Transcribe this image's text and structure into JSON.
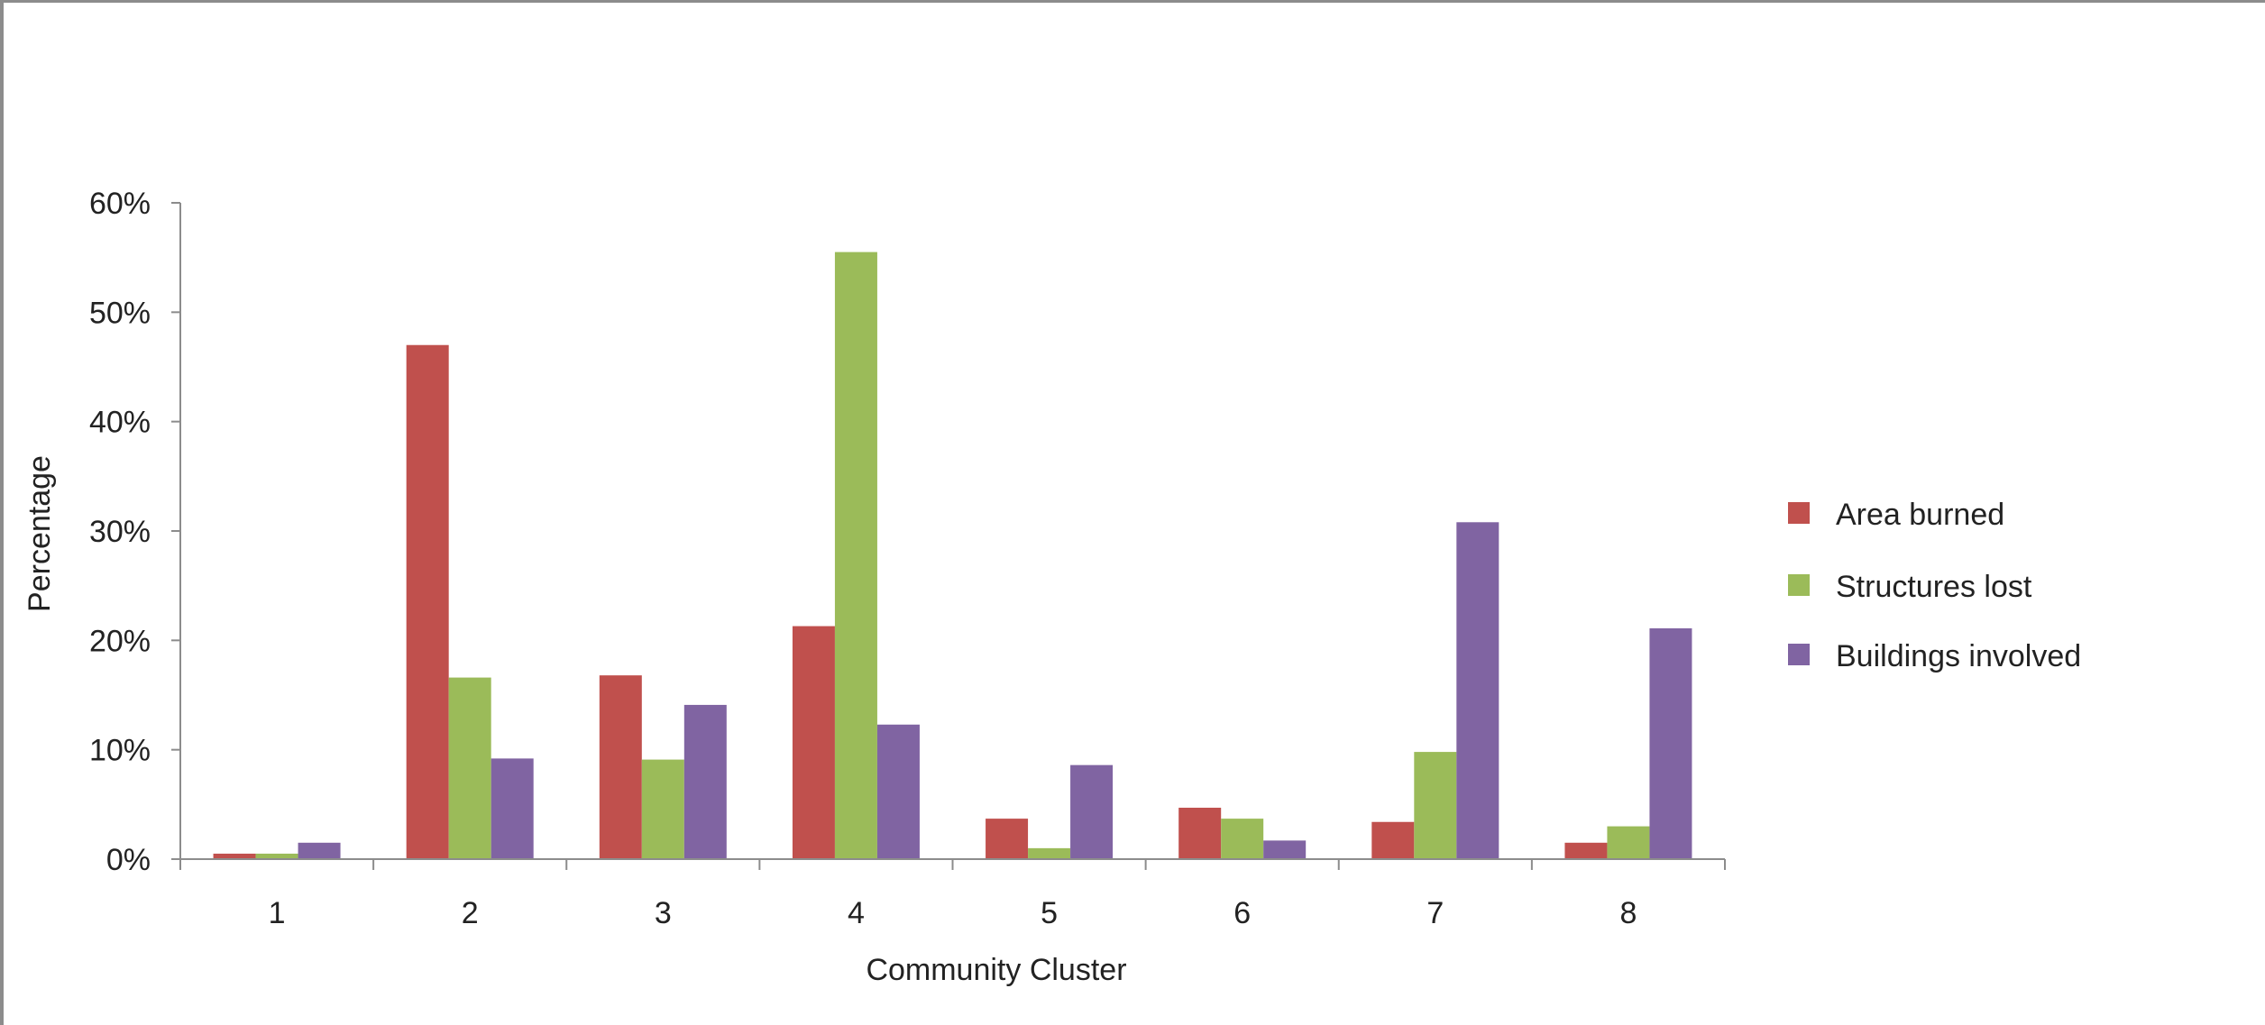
{
  "chart_data": {
    "type": "bar",
    "title": "",
    "xlabel": "Community Cluster",
    "ylabel": "Percentage",
    "categories": [
      "1",
      "2",
      "3",
      "4",
      "5",
      "6",
      "7",
      "8"
    ],
    "series": [
      {
        "name": "Area burned",
        "color": "#c0504d",
        "values": [
          0.5,
          47.0,
          16.8,
          21.3,
          3.7,
          4.7,
          3.4,
          1.5
        ]
      },
      {
        "name": "Structures lost",
        "color": "#9bbb59",
        "values": [
          0.5,
          16.6,
          9.1,
          55.5,
          1.0,
          3.7,
          9.8,
          3.0
        ]
      },
      {
        "name": "Buildings involved",
        "color": "#8064a2",
        "values": [
          1.5,
          9.2,
          14.1,
          12.3,
          8.6,
          1.7,
          30.8,
          21.1
        ]
      }
    ],
    "ylim": [
      0,
      60
    ],
    "ytick_values": [
      0,
      10,
      20,
      30,
      40,
      50,
      60
    ],
    "ytick_labels": [
      "0%",
      "10%",
      "20%",
      "30%",
      "40%",
      "50%",
      "60%"
    ],
    "grid": false,
    "legend_position": "right"
  }
}
